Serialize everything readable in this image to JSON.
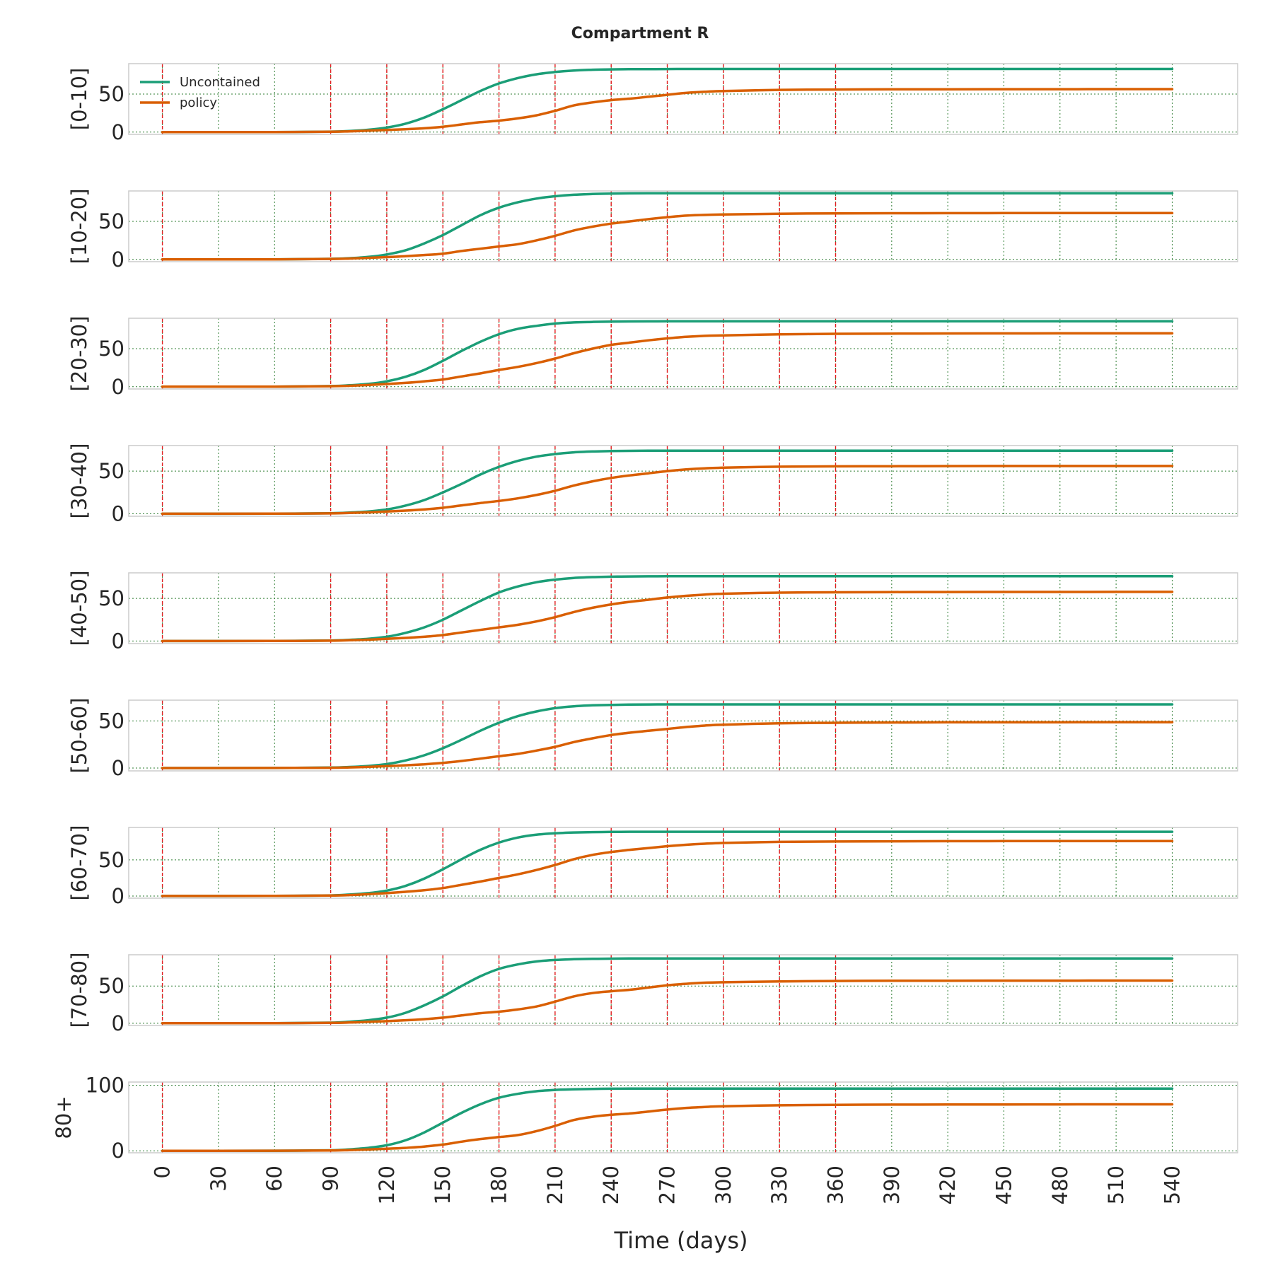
{
  "figure": {
    "title": "Compartment R",
    "xlabel": "Time (days)"
  },
  "colors": {
    "uncontained": "#1b9e77",
    "policy": "#d95f02",
    "policy_marker": "#e31a1c",
    "grid": "#2e7d32",
    "frame": "#cccccc",
    "text": "#262626"
  },
  "chart_data": {
    "type": "line",
    "title": "Compartment R",
    "xlabel": "Time (days)",
    "xlim": [
      -18,
      575
    ],
    "x_ticks": [
      0,
      30,
      60,
      90,
      120,
      150,
      180,
      210,
      240,
      270,
      300,
      330,
      360,
      390,
      420,
      450,
      480,
      510,
      540
    ],
    "x_tick_labels": [
      "0",
      "30",
      "60",
      "90",
      "120",
      "150",
      "180",
      "210",
      "240",
      "270",
      "300",
      "330",
      "360",
      "390",
      "420",
      "450",
      "480",
      "510",
      "540"
    ],
    "policy_change_days": [
      0,
      90,
      120,
      150,
      180,
      210,
      240,
      270,
      300,
      330,
      360
    ],
    "grid": true,
    "legend": {
      "location": "upper left",
      "panel": 0,
      "entries": [
        "Uncontained",
        "policy"
      ]
    },
    "x": [
      0,
      30,
      60,
      90,
      100,
      110,
      120,
      130,
      140,
      150,
      160,
      170,
      180,
      190,
      200,
      210,
      220,
      230,
      240,
      250,
      260,
      270,
      280,
      290,
      300,
      330,
      360,
      390,
      420,
      450,
      480,
      510,
      540
    ],
    "panels": [
      {
        "ylabel": "[0-10]",
        "ylim": [
          -3,
          90
        ],
        "yticks": [
          0,
          50
        ],
        "series": [
          {
            "name": "Uncontained",
            "values": [
              0,
              0,
              0.1,
              0.6,
              1.5,
              3,
              6,
              11,
              19,
              30,
              42,
              54,
              64,
              71,
              76,
              79,
              81,
              82,
              82.5,
              82.7,
              82.8,
              82.9,
              83,
              83,
              83,
              83,
              83,
              83,
              83,
              83,
              83,
              83,
              83
            ]
          },
          {
            "name": "policy",
            "values": [
              0,
              0,
              0.1,
              0.5,
              1,
              1.8,
              2.8,
              3.8,
              5,
              7,
              10,
              13,
              15,
              18,
              22,
              28,
              35,
              39,
              42,
              44,
              46.5,
              49,
              51.5,
              53,
              54,
              55.5,
              56,
              56.2,
              56.3,
              56.4,
              56.4,
              56.5,
              56.5
            ]
          }
        ]
      },
      {
        "ylabel": "[10-20]",
        "ylim": [
          -3,
          90
        ],
        "yticks": [
          0,
          50
        ],
        "series": [
          {
            "name": "Uncontained",
            "values": [
              0,
              0,
              0.1,
              0.7,
              1.6,
              3.2,
              6.5,
              12,
              21,
              32,
              45,
              58,
              68,
              75,
              80,
              83,
              85,
              86,
              86.5,
              86.8,
              86.9,
              87,
              87,
              87,
              87,
              87,
              87,
              87,
              87,
              87,
              87,
              87,
              87
            ]
          },
          {
            "name": "policy",
            "values": [
              0,
              0,
              0.1,
              0.6,
              1.1,
              2,
              3,
              4.2,
              5.7,
              7.5,
              11,
              14,
              17,
              20,
              25,
              31,
              38,
              43,
              47,
              50,
              53,
              55.5,
              57.5,
              58.5,
              59,
              60,
              60.5,
              60.7,
              60.8,
              60.9,
              61,
              61,
              61
            ]
          }
        ]
      },
      {
        "ylabel": "[20-30]",
        "ylim": [
          -3,
          90
        ],
        "yticks": [
          0,
          50
        ],
        "series": [
          {
            "name": "Uncontained",
            "values": [
              0,
              0,
              0.1,
              0.8,
              1.8,
              3.6,
              7,
              13,
              22,
              34,
              47,
              59,
              69,
              76,
              80,
              83,
              84.5,
              85.2,
              85.6,
              85.8,
              85.9,
              86,
              86,
              86,
              86,
              86,
              86,
              86,
              86,
              86,
              86,
              86,
              86
            ]
          },
          {
            "name": "policy",
            "values": [
              0,
              0,
              0.1,
              0.6,
              1.2,
              2.2,
              3.5,
              5,
              7,
              9.5,
              13.5,
              17.5,
              22,
              26,
              31,
              37,
              44,
              50,
              55,
              58,
              61,
              63.5,
              65.5,
              66.8,
              67.5,
              68.8,
              69.5,
              69.8,
              70,
              70.1,
              70.2,
              70.3,
              70.3
            ]
          }
        ]
      },
      {
        "ylabel": "[30-40]",
        "ylim": [
          -3,
          80
        ],
        "yticks": [
          0,
          50
        ],
        "series": [
          {
            "name": "Uncontained",
            "values": [
              0,
              0,
              0.1,
              0.6,
              1.3,
              2.6,
              5,
              9.5,
              16,
              25,
              35,
              46,
              55,
              62,
              67,
              70,
              72,
              73,
              73.5,
              73.8,
              73.9,
              74,
              74,
              74,
              74,
              74,
              74,
              74,
              74,
              74,
              74,
              74,
              74
            ]
          },
          {
            "name": "policy",
            "values": [
              0,
              0,
              0.1,
              0.4,
              0.9,
              1.6,
              2.6,
              3.6,
              5,
              7,
              9.8,
              12.5,
              15,
              18,
              22,
              27,
              33,
              38,
              42,
              45,
              47.5,
              50,
              52,
              53.3,
              54,
              55.2,
              55.6,
              55.8,
              55.9,
              56,
              56,
              56,
              56
            ]
          }
        ]
      },
      {
        "ylabel": "[40-50]",
        "ylim": [
          -3,
          80
        ],
        "yticks": [
          0,
          50
        ],
        "series": [
          {
            "name": "Uncontained",
            "values": [
              0,
              0,
              0.1,
              0.6,
              1.3,
              2.6,
              5,
              9.5,
              16,
              25,
              36,
              47,
              57,
              64,
              69,
              72,
              74,
              75,
              75.5,
              75.8,
              75.9,
              76,
              76,
              76,
              76,
              76,
              76,
              76,
              76,
              76,
              76,
              76,
              76
            ]
          },
          {
            "name": "policy",
            "values": [
              0,
              0,
              0.1,
              0.4,
              0.9,
              1.6,
              2.6,
              3.6,
              5,
              7,
              10,
              13,
              16,
              19,
              23,
              28,
              34,
              39,
              43,
              46,
              48.5,
              51,
              53,
              54.5,
              55.5,
              56.8,
              57.2,
              57.4,
              57.5,
              57.6,
              57.6,
              57.7,
              57.7
            ]
          }
        ]
      },
      {
        "ylabel": "[50-60]",
        "ylim": [
          -3,
          72
        ],
        "yticks": [
          0,
          50
        ],
        "series": [
          {
            "name": "Uncontained",
            "values": [
              0,
              0,
              0.1,
              0.5,
              1.1,
              2.2,
              4.2,
              8,
              13.5,
              21,
              30,
              39.5,
              48,
              55,
              60,
              63.5,
              65.5,
              66.5,
              67,
              67.3,
              67.4,
              67.5,
              67.5,
              67.5,
              67.5,
              67.5,
              67.5,
              67.5,
              67.5,
              67.5,
              67.5,
              67.5,
              67.5
            ]
          },
          {
            "name": "policy",
            "values": [
              0,
              0,
              0.1,
              0.3,
              0.7,
              1.2,
              2,
              2.9,
              4,
              5.5,
              7.5,
              10,
              12.5,
              15,
              18.5,
              22.5,
              27.5,
              31.5,
              35,
              37.5,
              39.5,
              41.5,
              43.5,
              45,
              46,
              47.5,
              48,
              48.3,
              48.5,
              48.6,
              48.6,
              48.7,
              48.7
            ]
          }
        ]
      },
      {
        "ylabel": "[60-70]",
        "ylim": [
          -3,
          95
        ],
        "yticks": [
          0,
          50
        ],
        "series": [
          {
            "name": "Uncontained",
            "values": [
              0,
              0,
              0.1,
              0.8,
              2,
              4,
              7.5,
              14,
              24,
              37,
              51,
              64,
              74,
              81,
              85,
              87,
              88,
              88.5,
              88.8,
              89,
              89,
              89,
              89,
              89,
              89,
              89,
              89,
              89,
              89,
              89,
              89,
              89,
              89
            ]
          },
          {
            "name": "policy",
            "values": [
              0,
              0,
              0.1,
              0.6,
              1.3,
              2.5,
              4,
              5.8,
              8,
              11,
              15.5,
              20,
              25,
              30,
              36,
              43,
              51,
              57,
              61,
              64,
              66.5,
              69,
              71,
              72.5,
              73.5,
              75,
              75.5,
              75.8,
              76,
              76.1,
              76.2,
              76.2,
              76.2
            ]
          }
        ]
      },
      {
        "ylabel": "[70-80]",
        "ylim": [
          -3,
          92
        ],
        "yticks": [
          0,
          50
        ],
        "series": [
          {
            "name": "Uncontained",
            "values": [
              0,
              0,
              0.1,
              0.8,
              2,
              4,
              7.5,
              14,
              24,
              36,
              50,
              63,
              73,
              79,
              83,
              85,
              86,
              86.5,
              86.8,
              87,
              87,
              87,
              87,
              87,
              87,
              87,
              87,
              87,
              87,
              87,
              87,
              87,
              87
            ]
          },
          {
            "name": "policy",
            "values": [
              0,
              0,
              0.1,
              0.5,
              1,
              1.8,
              2.8,
              4,
              5.5,
              7.5,
              10.5,
              13.5,
              15.5,
              18.5,
              22.5,
              29,
              36,
              40.5,
              43,
              45,
              48,
              51,
              53,
              54.5,
              55,
              56.2,
              56.8,
              57,
              57.1,
              57.2,
              57.2,
              57.3,
              57.3
            ]
          }
        ]
      },
      {
        "ylabel": "80+",
        "ylim": [
          -3,
          105
        ],
        "yticks": [
          0,
          100
        ],
        "series": [
          {
            "name": "Uncontained",
            "values": [
              0,
              0,
              0.1,
              0.8,
              2.2,
              4.5,
              8.5,
              16,
              28,
              43,
              58,
              71,
              81,
              87,
              91,
              93,
              94,
              94.5,
              94.8,
              95,
              95,
              95,
              95,
              95,
              95,
              95,
              95,
              95,
              95,
              95,
              95,
              95,
              95
            ]
          },
          {
            "name": "policy",
            "values": [
              0,
              0,
              0.1,
              0.5,
              1.1,
              2,
              3.2,
              4.5,
              6.5,
              9.5,
              14,
              18,
              21,
              24,
              30,
              38,
              47,
              52,
              55,
              57,
              60,
              63,
              65.5,
              67,
              68,
              69.5,
              70.2,
              70.5,
              70.7,
              70.8,
              70.9,
              71,
              71
            ]
          }
        ]
      }
    ]
  }
}
